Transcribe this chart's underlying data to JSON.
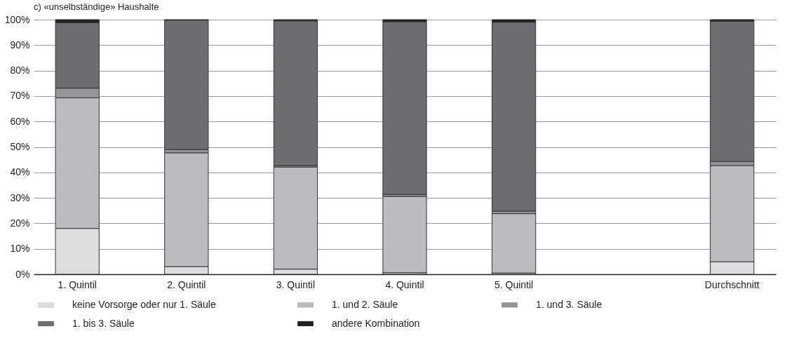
{
  "chart_data": {
    "type": "bar",
    "title": "c) «unselbständige» Haushalte",
    "stacked": true,
    "categories": [
      "1. Quintil",
      "2. Quintil",
      "3. Quintil",
      "4. Quintil",
      "5. Quintil",
      null,
      "Durchschnitt"
    ],
    "series": [
      {
        "name": "keine Vorsorge oder nur 1. Säule",
        "color": "#dcdddf",
        "values": [
          18,
          3,
          2,
          0.6,
          0.5,
          null,
          4.9
        ]
      },
      {
        "name": "1. und 2. Säule",
        "color": "#bbbcc0",
        "values": [
          51.3,
          44.7,
          40.1,
          30,
          23.3,
          null,
          37.8
        ]
      },
      {
        "name": "1. und 3. Säule",
        "color": "#939598",
        "values": [
          3.8,
          1.3,
          0.6,
          0.8,
          1,
          null,
          1.6
        ]
      },
      {
        "name": "1. bis 3. Säule",
        "color": "#6d6e71",
        "values": [
          25.7,
          50.8,
          56.8,
          67.8,
          74.2,
          null,
          55.1
        ]
      },
      {
        "name": "andere Kombination",
        "color": "#231f20",
        "values": [
          1.2,
          0.2,
          0.5,
          0.8,
          1,
          null,
          0.6
        ]
      }
    ],
    "ylim": [
      0,
      100
    ],
    "yticks": [
      {
        "value": 0,
        "label": "0%"
      },
      {
        "value": 10,
        "label": "10%"
      },
      {
        "value": 20,
        "label": "20%"
      },
      {
        "value": 30,
        "label": "30%"
      },
      {
        "value": 40,
        "label": "40%"
      },
      {
        "value": 50,
        "label": "50%"
      },
      {
        "value": 60,
        "label": "60%"
      },
      {
        "value": 70,
        "label": "70%"
      },
      {
        "value": 80,
        "label": "80%"
      },
      {
        "value": 90,
        "label": "90%"
      },
      {
        "value": 100,
        "label": "100%"
      }
    ],
    "grid": "y",
    "legend": "bottom"
  }
}
